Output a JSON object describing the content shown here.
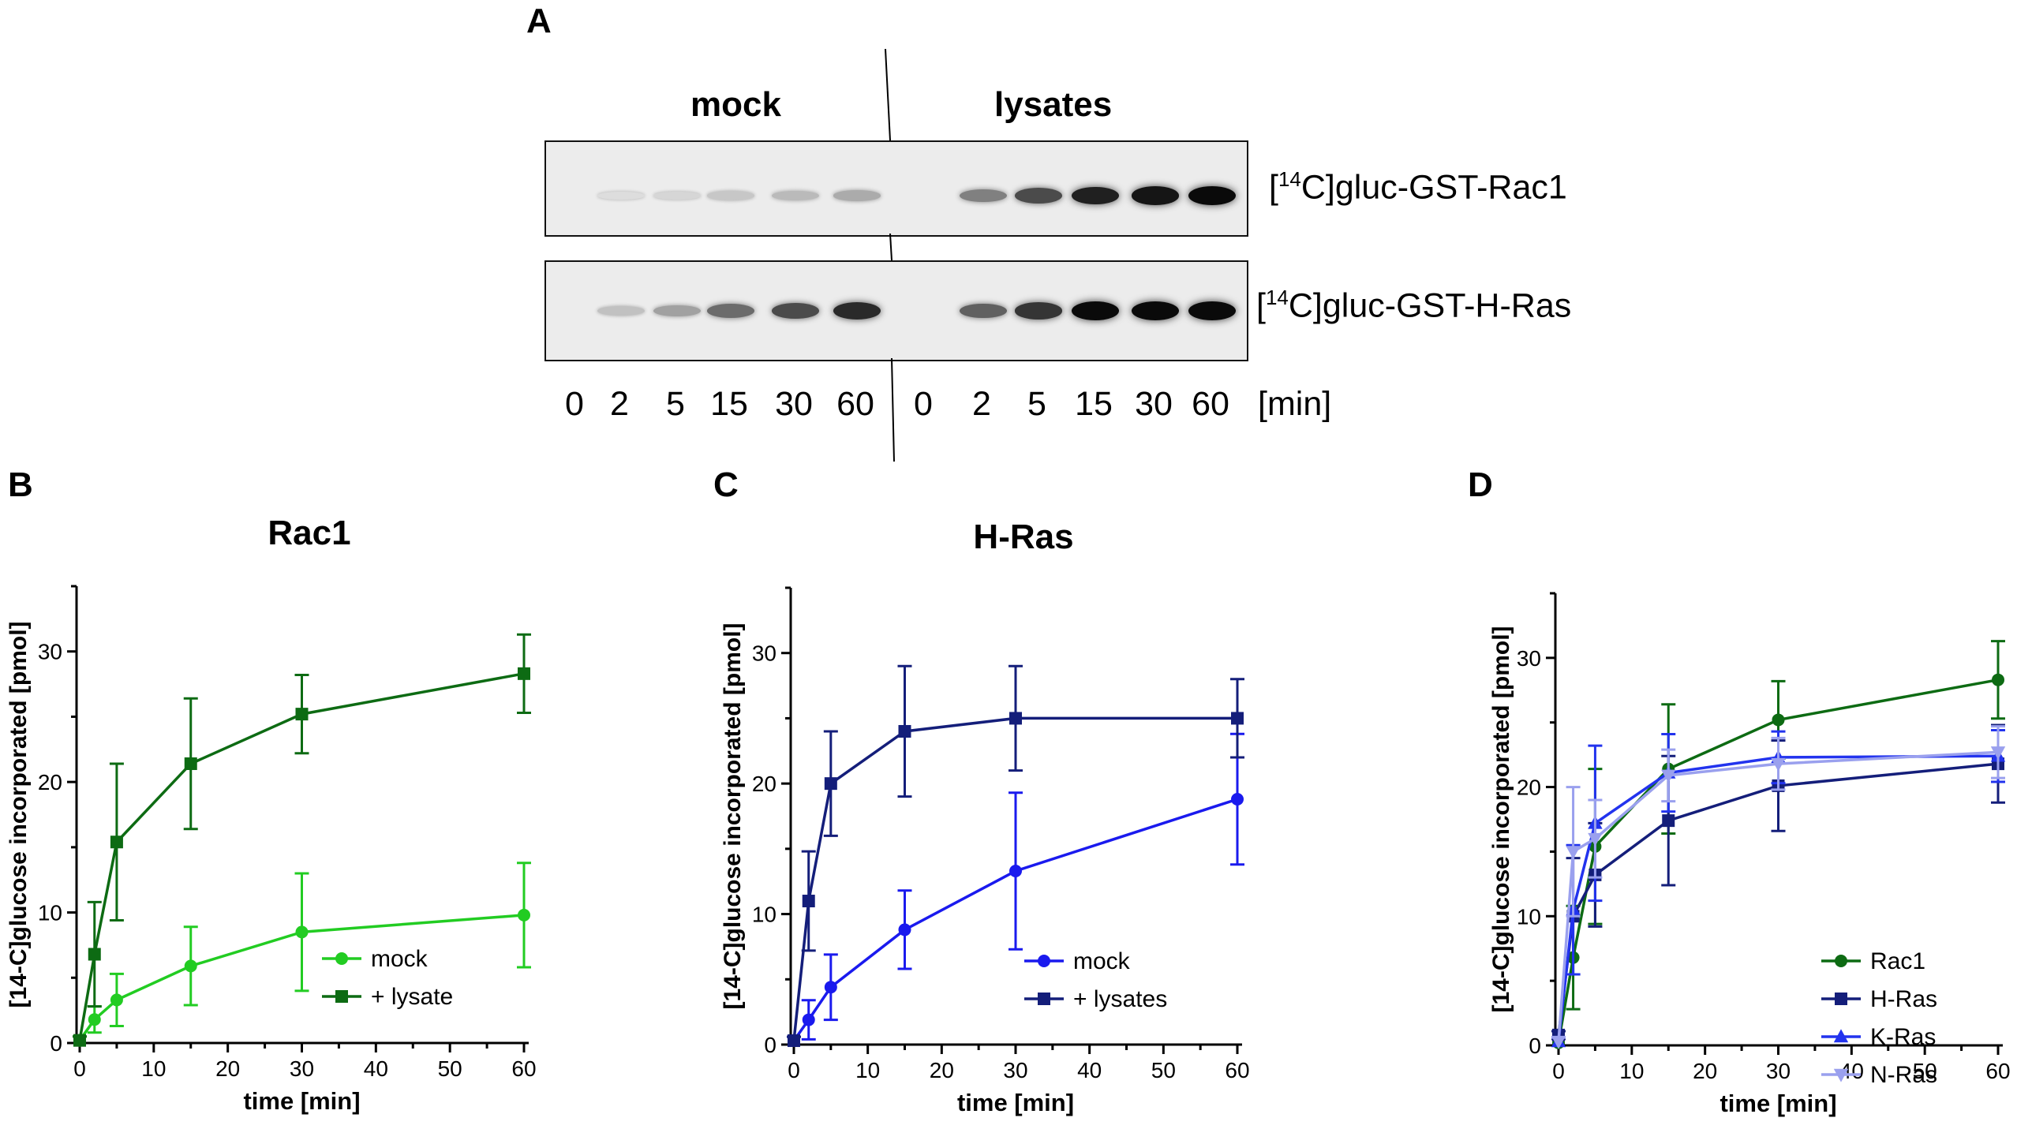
{
  "panels": {
    "A": "A",
    "B": "B",
    "C": "C",
    "D": "D"
  },
  "blot": {
    "group_mock": "mock",
    "group_lysates": "lysates",
    "row1_prefix": "[",
    "row1_sup": "14",
    "row1_rest": "C]gluc-GST-Rac1",
    "row2_prefix": "[",
    "row2_sup": "14",
    "row2_rest": "C]gluc-GST-H-Ras",
    "lane_labels": [
      "0",
      "2",
      "5",
      "15",
      "30",
      "60",
      "0",
      "2",
      "5",
      "15",
      "30",
      "60"
    ],
    "unit_label": "[min]",
    "row1_intensity": [
      0.0,
      0.02,
      0.05,
      0.12,
      0.18,
      0.25,
      0.0,
      0.45,
      0.7,
      0.9,
      0.95,
      1.0
    ],
    "row2_intensity": [
      0.0,
      0.15,
      0.3,
      0.55,
      0.7,
      0.85,
      0.0,
      0.6,
      0.8,
      1.0,
      1.0,
      1.0
    ]
  },
  "chart_data": [
    {
      "type": "line",
      "id": "B",
      "title": "Rac1",
      "xlabel": "time [min]",
      "ylabel": "[14-C]glucose incorporated [pmol]",
      "xlim": [
        0,
        60
      ],
      "ylim": [
        0,
        35
      ],
      "xticks": [
        0,
        10,
        20,
        30,
        40,
        50,
        60
      ],
      "yticks": [
        0,
        10,
        20,
        30
      ],
      "legend_position": "lower-right",
      "series": [
        {
          "name": "mock",
          "color": "#22cc22",
          "marker": "circle",
          "x": [
            0,
            2,
            5,
            15,
            30,
            60
          ],
          "y": [
            0.2,
            1.8,
            3.3,
            5.9,
            8.5,
            9.8
          ],
          "err": [
            0.3,
            1.0,
            2.0,
            3.0,
            4.5,
            4.0
          ]
        },
        {
          "name": "+ lysate",
          "color": "#0d6b13",
          "marker": "square",
          "x": [
            0,
            2,
            5,
            15,
            30,
            60
          ],
          "y": [
            0.2,
            6.8,
            15.4,
            21.4,
            25.2,
            28.3
          ],
          "err": [
            0.3,
            4.0,
            6.0,
            5.0,
            3.0,
            3.0
          ]
        }
      ]
    },
    {
      "type": "line",
      "id": "C",
      "title": "H-Ras",
      "xlabel": "time [min]",
      "ylabel": "[14-C]glucose incorporated [pmol]",
      "xlim": [
        0,
        60
      ],
      "ylim": [
        0,
        35
      ],
      "xticks": [
        0,
        10,
        20,
        30,
        40,
        50,
        60
      ],
      "yticks": [
        0,
        10,
        20,
        30
      ],
      "legend_position": "lower-right",
      "series": [
        {
          "name": "mock",
          "color": "#1a1aee",
          "marker": "circle",
          "x": [
            0,
            2,
            5,
            15,
            30,
            60
          ],
          "y": [
            0.3,
            1.9,
            4.4,
            8.8,
            13.3,
            18.8
          ],
          "err": [
            0.3,
            1.5,
            2.5,
            3.0,
            6.0,
            5.0
          ]
        },
        {
          "name": "+ lysates",
          "color": "#141e7a",
          "marker": "square",
          "x": [
            0,
            2,
            5,
            15,
            30,
            60
          ],
          "y": [
            0.3,
            11.0,
            20.0,
            24.0,
            25.0,
            25.0
          ],
          "err": [
            0.3,
            3.8,
            4.0,
            5.0,
            4.0,
            3.0
          ]
        }
      ]
    },
    {
      "type": "line",
      "id": "D",
      "title": "",
      "xlabel": "time [min]",
      "ylabel": "[14-C]glucose incorporated [pmol]",
      "xlim": [
        0,
        60
      ],
      "ylim": [
        0,
        35
      ],
      "xticks": [
        0,
        10,
        20,
        30,
        40,
        50,
        60
      ],
      "yticks": [
        0,
        10,
        20,
        30
      ],
      "legend_position": "lower-right",
      "series": [
        {
          "name": "Rac1",
          "color": "#0d6b13",
          "marker": "circle",
          "x": [
            0,
            2,
            5,
            15,
            30,
            60
          ],
          "y": [
            0.2,
            6.8,
            15.4,
            21.4,
            25.2,
            28.3
          ],
          "err": [
            0.3,
            4.0,
            6.0,
            5.0,
            3.0,
            3.0
          ]
        },
        {
          "name": "H-Ras",
          "color": "#141e7a",
          "marker": "square",
          "x": [
            0,
            2,
            5,
            15,
            30,
            60
          ],
          "y": [
            0.8,
            10.0,
            13.2,
            17.4,
            20.1,
            21.8
          ],
          "err": [
            0.3,
            4.5,
            4.0,
            5.0,
            3.5,
            3.0
          ]
        },
        {
          "name": "K-Ras",
          "color": "#2233ee",
          "marker": "triangle-up",
          "x": [
            0,
            2,
            5,
            15,
            30,
            60
          ],
          "y": [
            0.3,
            10.5,
            17.2,
            21.1,
            22.3,
            22.4
          ],
          "err": [
            0.3,
            5.0,
            6.0,
            3.0,
            2.0,
            2.0
          ]
        },
        {
          "name": "N-Ras",
          "color": "#9aa0ee",
          "marker": "triangle-down",
          "x": [
            0,
            2,
            5,
            15,
            30,
            60
          ],
          "y": [
            0.3,
            15.0,
            16.0,
            20.9,
            21.8,
            22.7
          ],
          "err": [
            0.3,
            5.0,
            3.0,
            2.0,
            2.0,
            2.0
          ]
        }
      ]
    }
  ]
}
